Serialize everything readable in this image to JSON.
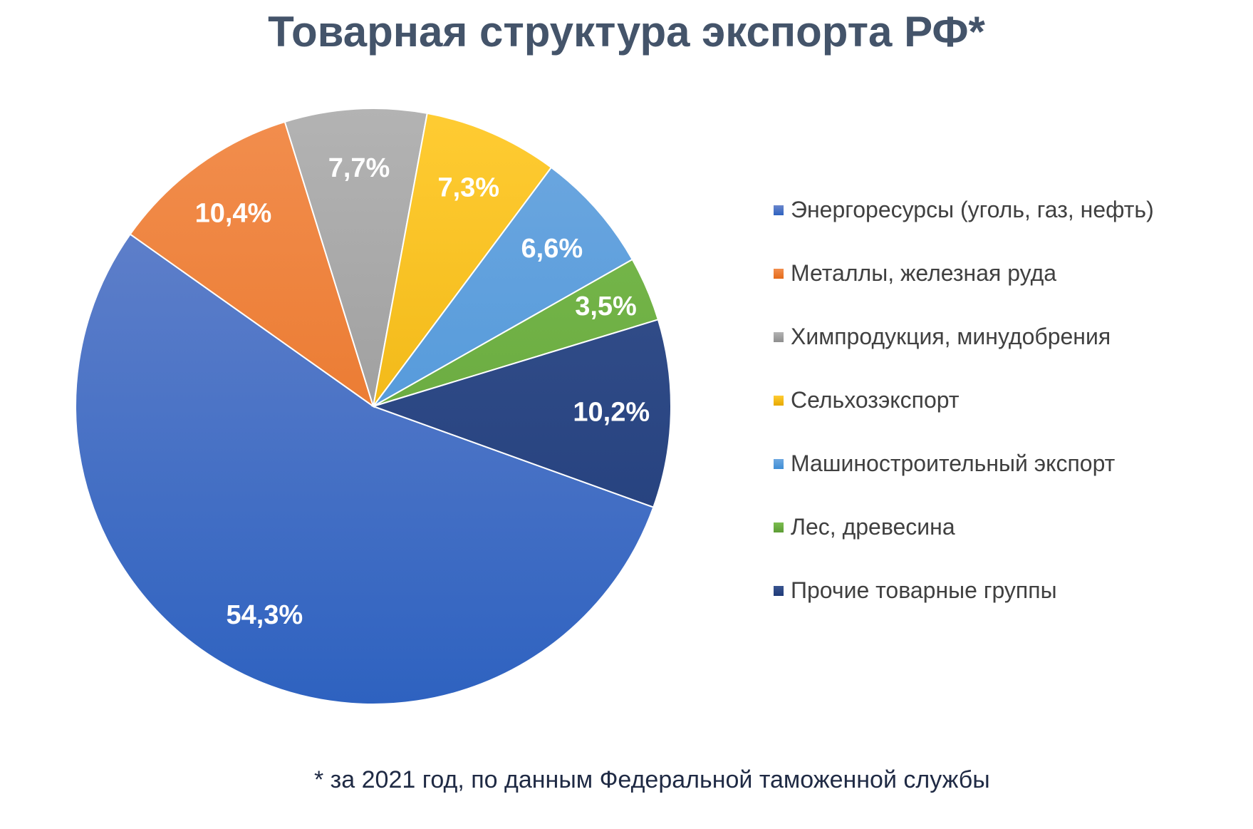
{
  "chart_data": {
    "type": "pie",
    "title": "Товарная структура экспорта РФ*",
    "footnote": "* за 2021 год, по данным Федеральной таможенной службы",
    "legend_position": "right",
    "slices": [
      {
        "label": "Энергоресурсы (уголь, газ, нефть)",
        "value": 54.3,
        "display": "54,3%",
        "color_top": "#6a86cc",
        "color_bottom": "#2e62c0"
      },
      {
        "label": "Металлы, железная руда",
        "value": 10.4,
        "display": "10,4%",
        "color_top": "#f28e4e",
        "color_bottom": "#e56b1a"
      },
      {
        "label": "Химпродукция, минудобрения",
        "value": 7.7,
        "display": "7,7%",
        "color_top": "#b3b3b3",
        "color_bottom": "#8e8e8e"
      },
      {
        "label": "Сельхозэкспорт",
        "value": 7.3,
        "display": "7,3%",
        "color_top": "#ffcc33",
        "color_bottom": "#e6a800"
      },
      {
        "label": "Машиностроительный экспорт",
        "value": 6.6,
        "display": "6,6%",
        "color_top": "#6ea8e0",
        "color_bottom": "#3f8ed6"
      },
      {
        "label": "Лес, древесина",
        "value": 3.5,
        "display": "3,5%",
        "color_top": "#7bbd4f",
        "color_bottom": "#5d9c35"
      },
      {
        "label": "Прочие товарные группы",
        "value": 10.2,
        "display": "10,2%",
        "color_top": "#3a5590",
        "color_bottom": "#1e3a78"
      }
    ]
  }
}
